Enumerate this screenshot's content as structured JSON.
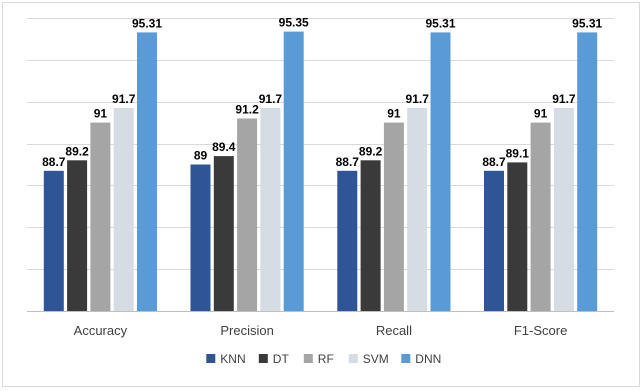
{
  "chart_data": {
    "type": "bar",
    "categories": [
      "Accuracy",
      "Precision",
      "Recall",
      "F1-Score"
    ],
    "series": [
      {
        "name": "KNN",
        "color": "#2f5597",
        "values": [
          88.7,
          89,
          88.7,
          88.7
        ],
        "labels": [
          "88.7",
          "89",
          "88.7",
          "88.7"
        ]
      },
      {
        "name": "DT",
        "color": "#3a3a3a",
        "values": [
          89.2,
          89.4,
          89.2,
          89.1
        ],
        "labels": [
          "89.2",
          "89.4",
          "89.2",
          "89.1"
        ]
      },
      {
        "name": "RF",
        "color": "#a5a5a5",
        "values": [
          91,
          91.2,
          91,
          91
        ],
        "labels": [
          "91",
          "91.2",
          "91",
          "91"
        ]
      },
      {
        "name": "SVM",
        "color": "#d6dce4",
        "values": [
          91.7,
          91.7,
          91.7,
          91.7
        ],
        "labels": [
          "91.7",
          "91.7",
          "91.7",
          "91.7"
        ]
      },
      {
        "name": "DNN",
        "color": "#5b9bd5",
        "values": [
          95.31,
          95.35,
          95.31,
          95.31
        ],
        "labels": [
          "95.31",
          "95.35",
          "95.31",
          "95.31"
        ]
      }
    ],
    "ylim": [
      82,
      96
    ],
    "y_gridlines": [
      82,
      84,
      86,
      88,
      90,
      92,
      94,
      96
    ],
    "grid": true,
    "legend_position": "bottom",
    "title": "",
    "xlabel": "",
    "ylabel": ""
  }
}
